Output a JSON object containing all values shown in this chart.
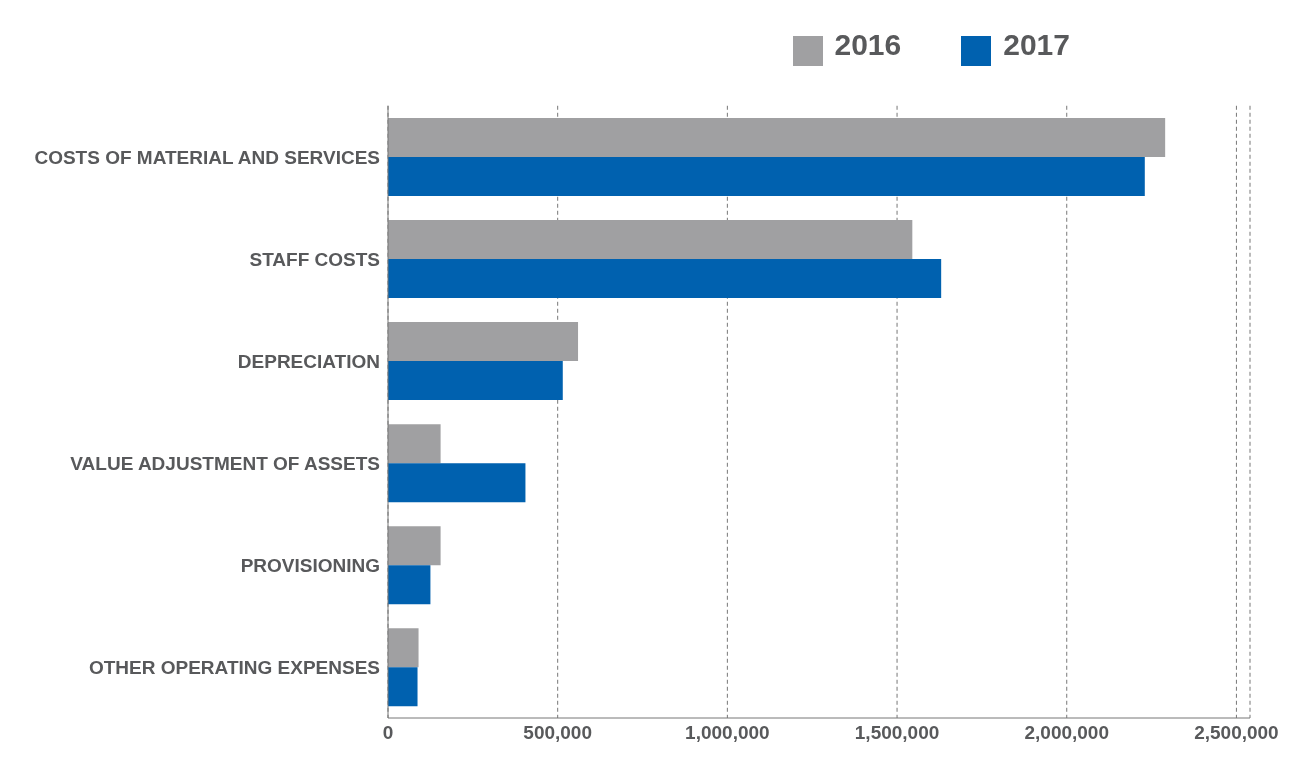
{
  "chart_data": {
    "type": "bar",
    "orientation": "horizontal",
    "categories": [
      "COSTS OF MATERIAL AND SERVICES",
      "STAFF COSTS",
      "DEPRECIATION",
      "VALUE ADJUSTMENT OF ASSETS",
      "PROVISIONING",
      "OTHER OPERATING EXPENSES"
    ],
    "series": [
      {
        "name": "2016",
        "color": "#a0a0a2",
        "values": [
          2290000,
          1545000,
          560000,
          155000,
          155000,
          90000
        ]
      },
      {
        "name": "2017",
        "color": "#0061af",
        "values": [
          2230000,
          1630000,
          515000,
          405000,
          125000,
          87000
        ]
      }
    ],
    "xlim": [
      0,
      2540000
    ],
    "xticks": [
      0,
      {
        "value": 500000,
        "label": "500,000"
      },
      {
        "value": 1000000,
        "label": "1,000,000"
      },
      {
        "value": 1500000,
        "label": "1,500,000"
      },
      {
        "value": 2000000,
        "label": "2,000,000"
      },
      {
        "value": 2500000,
        "label": "2,500,000"
      }
    ],
    "grid": "x",
    "legend": "top right"
  }
}
